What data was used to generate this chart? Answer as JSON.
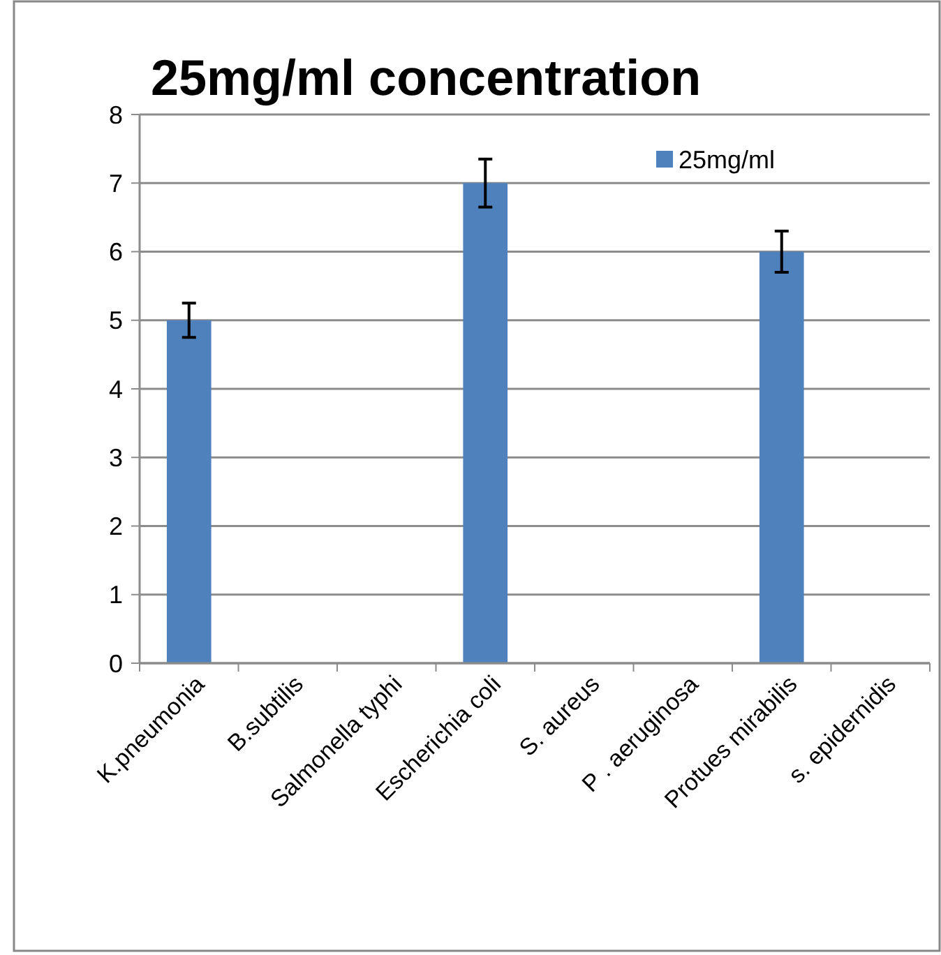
{
  "chart_data": {
    "type": "bar",
    "title": "25mg/ml concentration",
    "categories": [
      "K.pneumonia",
      "B.subtilis",
      "Salmonella typhi",
      "Escherichia coli",
      "S. aureus",
      "P . aeruginosa",
      "Protues mirabilis",
      "s. epidernidis"
    ],
    "series": [
      {
        "name": "25mg/ml",
        "color": "#4f81bd",
        "values": [
          5,
          0,
          0,
          7,
          0,
          0,
          6,
          0
        ],
        "errors": [
          0.25,
          null,
          null,
          0.35,
          null,
          null,
          0.3,
          null
        ]
      }
    ],
    "ylim": [
      0,
      8
    ],
    "yticks": [
      0,
      1,
      2,
      3,
      4,
      5,
      6,
      7,
      8
    ],
    "grid": "y",
    "legend": "top right"
  }
}
